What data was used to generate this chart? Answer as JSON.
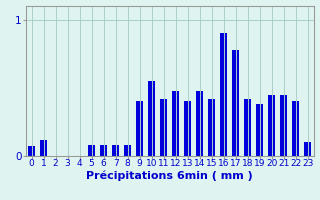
{
  "xlabel": "Précipitations 6min ( mm )",
  "ylabel": "",
  "background_color": "#dff4f0",
  "bar_color": "#0000dd",
  "hours": [
    0,
    1,
    2,
    3,
    4,
    5,
    6,
    7,
    8,
    9,
    10,
    11,
    12,
    13,
    14,
    15,
    16,
    17,
    18,
    19,
    20,
    21,
    22,
    23
  ],
  "values": [
    0.07,
    0.12,
    0.0,
    0.0,
    0.0,
    0.08,
    0.08,
    0.08,
    0.08,
    0.4,
    0.55,
    0.42,
    0.48,
    0.4,
    0.48,
    0.42,
    0.9,
    0.78,
    0.42,
    0.38,
    0.45,
    0.45,
    0.4,
    0.1
  ],
  "ylim": [
    0,
    1.1
  ],
  "yticks": [
    0,
    1
  ],
  "ytick_labels": [
    "0",
    "1"
  ],
  "xlim": [
    -0.5,
    23.5
  ],
  "grid_color": "#aacfc8",
  "axis_color": "#999999",
  "tick_color": "#0000cc",
  "xlabel_fontsize": 8,
  "tick_fontsize": 6.5,
  "bar_width": 0.6
}
